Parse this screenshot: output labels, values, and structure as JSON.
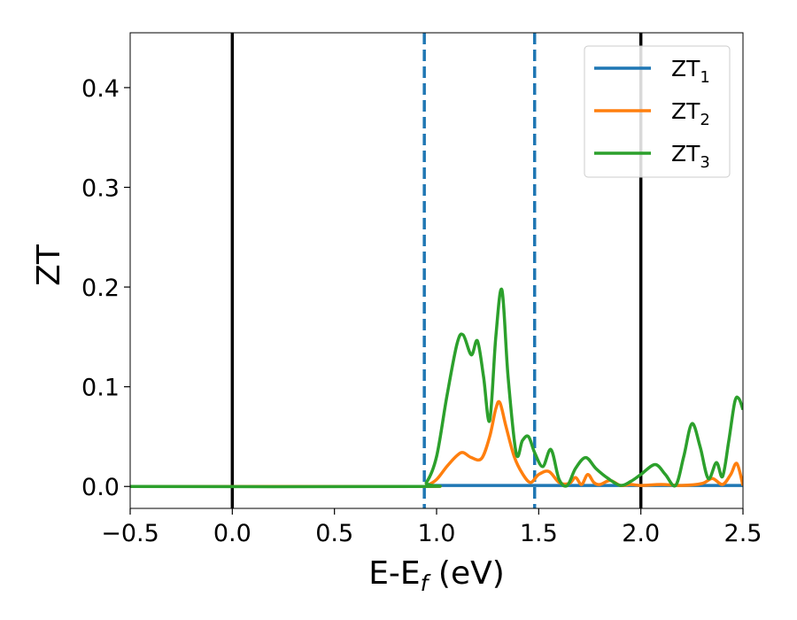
{
  "chart_data": {
    "type": "line",
    "title": "",
    "xlabel": "E-E",
    "xlabel_sub": "f",
    "xlabel_unit": " (eV)",
    "ylabel": "ZT",
    "xlim": [
      -0.5,
      2.5
    ],
    "ylim": [
      -0.022,
      0.455
    ],
    "xticks": [
      -0.5,
      0.0,
      0.5,
      1.0,
      1.5,
      2.0,
      2.5
    ],
    "xtick_labels": [
      "−0.5",
      "0.0",
      "0.5",
      "1.0",
      "1.5",
      "2.0",
      "2.5"
    ],
    "yticks": [
      0.0,
      0.1,
      0.2,
      0.3,
      0.4
    ],
    "ytick_labels": [
      "0.0",
      "0.1",
      "0.2",
      "0.3",
      "0.4"
    ],
    "grid": false,
    "legend_position": "top-right",
    "vertical_lines": [
      {
        "x": 0.0,
        "style": "solid",
        "color": "#000000"
      },
      {
        "x": 2.0,
        "style": "solid",
        "color": "#000000"
      },
      {
        "x": 0.94,
        "style": "dashed",
        "color": "#1f77b4"
      },
      {
        "x": 1.48,
        "style": "dashed",
        "color": "#1f77b4"
      }
    ],
    "series": [
      {
        "name": "ZT",
        "sub": "1",
        "color": "#1f77b4",
        "x": [
          -0.5,
          0.9,
          1.0,
          1.5,
          2.0,
          2.5
        ],
        "y": [
          0.0,
          0.0,
          0.001,
          0.001,
          0.001,
          0.001
        ]
      },
      {
        "name": "ZT",
        "sub": "2",
        "color": "#ff7f0e",
        "x": [
          -0.5,
          0.9,
          0.95,
          1.0,
          1.05,
          1.1,
          1.13,
          1.17,
          1.22,
          1.26,
          1.29,
          1.31,
          1.34,
          1.38,
          1.42,
          1.46,
          1.5,
          1.55,
          1.6,
          1.65,
          1.68,
          1.71,
          1.74,
          1.77,
          1.8,
          1.85,
          1.9,
          1.95,
          2.0,
          2.1,
          2.2,
          2.3,
          2.35,
          2.4,
          2.44,
          2.47,
          2.5
        ],
        "y": [
          0.0,
          0.0,
          0.001,
          0.007,
          0.02,
          0.031,
          0.034,
          0.029,
          0.028,
          0.05,
          0.078,
          0.084,
          0.06,
          0.03,
          0.013,
          0.004,
          0.012,
          0.015,
          0.004,
          0.003,
          0.009,
          0.002,
          0.012,
          0.004,
          0.002,
          0.006,
          0.001,
          0.002,
          0.001,
          0.002,
          0.001,
          0.003,
          0.008,
          0.002,
          0.012,
          0.023,
          0.001
        ]
      },
      {
        "name": "ZT",
        "sub": "3",
        "color": "#2ca02c",
        "x": [
          -0.5,
          0.9,
          0.95,
          1.0,
          1.05,
          1.1,
          1.13,
          1.17,
          1.2,
          1.23,
          1.26,
          1.29,
          1.32,
          1.35,
          1.39,
          1.42,
          1.45,
          1.48,
          1.52,
          1.56,
          1.6,
          1.64,
          1.68,
          1.73,
          1.78,
          1.84,
          1.9,
          1.95,
          2.0,
          2.07,
          2.12,
          2.17,
          2.21,
          2.25,
          2.29,
          2.33,
          2.37,
          2.4,
          2.43,
          2.46,
          2.48,
          2.5
        ],
        "y": [
          0.0,
          0.0,
          0.004,
          0.03,
          0.09,
          0.143,
          0.152,
          0.132,
          0.146,
          0.11,
          0.066,
          0.15,
          0.197,
          0.11,
          0.033,
          0.046,
          0.05,
          0.034,
          0.02,
          0.037,
          0.007,
          0.001,
          0.018,
          0.029,
          0.018,
          0.008,
          0.001,
          0.005,
          0.012,
          0.022,
          0.012,
          0.001,
          0.03,
          0.063,
          0.04,
          0.008,
          0.024,
          0.01,
          0.045,
          0.085,
          0.088,
          0.077
        ]
      }
    ]
  }
}
